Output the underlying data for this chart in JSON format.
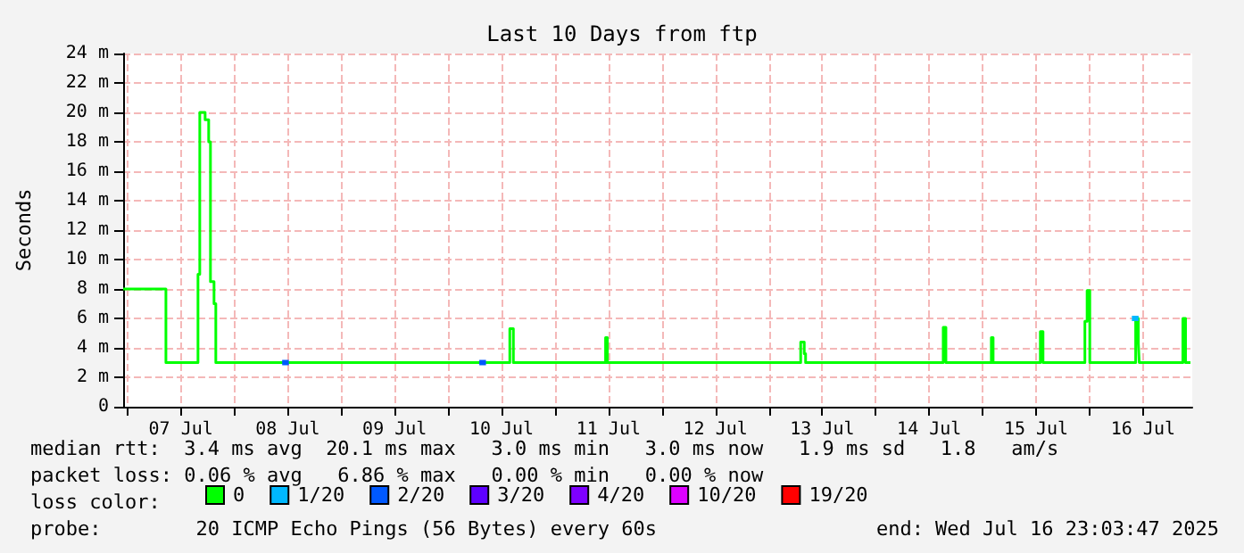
{
  "chart_data": {
    "type": "step",
    "title": "Last 10 Days from ftp",
    "ylabel": "Seconds",
    "xlim": [
      "2025-07-06T23:03",
      "2025-07-16T23:03"
    ],
    "xticks": [
      {
        "value": "2025-07-07T00:00",
        "label": null
      },
      {
        "value": "2025-07-07T12:00",
        "label": "07 Jul"
      },
      {
        "value": "2025-07-08T00:00",
        "label": null
      },
      {
        "value": "2025-07-08T12:00",
        "label": "08 Jul"
      },
      {
        "value": "2025-07-09T00:00",
        "label": null
      },
      {
        "value": "2025-07-09T12:00",
        "label": "09 Jul"
      },
      {
        "value": "2025-07-10T00:00",
        "label": null
      },
      {
        "value": "2025-07-10T12:00",
        "label": "10 Jul"
      },
      {
        "value": "2025-07-11T00:00",
        "label": null
      },
      {
        "value": "2025-07-11T12:00",
        "label": "11 Jul"
      },
      {
        "value": "2025-07-12T00:00",
        "label": null
      },
      {
        "value": "2025-07-12T12:00",
        "label": "12 Jul"
      },
      {
        "value": "2025-07-13T00:00",
        "label": null
      },
      {
        "value": "2025-07-13T12:00",
        "label": "13 Jul"
      },
      {
        "value": "2025-07-14T00:00",
        "label": null
      },
      {
        "value": "2025-07-14T12:00",
        "label": "14 Jul"
      },
      {
        "value": "2025-07-15T00:00",
        "label": null
      },
      {
        "value": "2025-07-15T12:00",
        "label": "15 Jul"
      },
      {
        "value": "2025-07-16T00:00",
        "label": null
      },
      {
        "value": "2025-07-16T12:00",
        "label": "16 Jul"
      }
    ],
    "ylim": [
      0,
      24
    ],
    "yticks": [
      0,
      {
        "value": 2,
        "label": "2 m"
      },
      {
        "value": 4,
        "label": "4 m"
      },
      {
        "value": 6,
        "label": "6 m"
      },
      {
        "value": 8,
        "label": "8 m"
      },
      {
        "value": 10,
        "label": "10 m"
      },
      {
        "value": 12,
        "label": "12 m"
      },
      {
        "value": 14,
        "label": "14 m"
      },
      {
        "value": 16,
        "label": "16 m"
      },
      {
        "value": 18,
        "label": "18 m"
      },
      {
        "value": 20,
        "label": "20 m"
      },
      {
        "value": 22,
        "label": "22 m"
      },
      {
        "value": 24,
        "label": "24 m"
      }
    ],
    "grid": true,
    "legend": "bottom left",
    "legend_title": "loss color:",
    "marker": "none",
    "series": [
      {
        "name": "0",
        "color": "#00ff00",
        "x": [
          "2025-07-06T23:03",
          "2025-07-07T08:15",
          "2025-07-07T08:39",
          "2025-07-07T15:51",
          "2025-07-07T16:15",
          "2025-07-07T17:27",
          "2025-07-07T18:15",
          "2025-07-07T18:39",
          "2025-07-07T19:27",
          "2025-07-07T19:51",
          "2025-07-10T13:51",
          "2025-07-10T14:39",
          "2025-07-11T11:21",
          "2025-07-11T11:45",
          "2025-07-13T07:09",
          "2025-07-13T07:57",
          "2025-07-13T08:15",
          "2025-07-14T15:09",
          "2025-07-14T15:45",
          "2025-07-15T01:57",
          "2025-07-15T02:21",
          "2025-07-15T12:57",
          "2025-07-15T13:33",
          "2025-07-15T22:57",
          "2025-07-15T23:27",
          "2025-07-16T00:03",
          "2025-07-16T10:21",
          "2025-07-16T10:57",
          "2025-07-16T11:09",
          "2025-07-16T20:57",
          "2025-07-16T21:33",
          "2025-07-16T22:39"
        ],
        "values": [
          8,
          8,
          3,
          9,
          20,
          19.5,
          18,
          8.5,
          7,
          3,
          5.3,
          3,
          4.7,
          3,
          4.4,
          3.6,
          3,
          5.4,
          3,
          4.7,
          3,
          5.1,
          3,
          5.8,
          7.9,
          3,
          6,
          4.3,
          3,
          6,
          3,
          3
        ]
      },
      {
        "name": "1/20",
        "color": "#00b8ff",
        "x": [
          "2025-07-16T09:30",
          "2025-07-16T11:00"
        ],
        "values": [
          6,
          6
        ]
      },
      {
        "name": "2/20",
        "color": "#0059ff",
        "x": [
          "2025-07-08T10:45",
          "2025-07-08T12:15",
          "2025-07-08T12:16",
          "2025-07-10T07:00",
          "2025-07-10T08:30"
        ],
        "values": [
          3,
          3,
          null,
          3,
          3
        ]
      },
      {
        "name": "3/20",
        "color": "#5e00ff"
      },
      {
        "name": "4/20",
        "color": "#7e00ff"
      },
      {
        "name": "10/20",
        "color": "#dd00ff"
      },
      {
        "name": "19/20",
        "color": "#ff0000"
      }
    ],
    "annotations": [
      "median rtt:  3.4 ms avg  20.1 ms max   3.0 ms min   3.0 ms now   1.9 ms sd   1.8   am/s",
      "packet loss: 0.06 % avg   6.86 % max   0.00 % min   0.00 % now",
      "probe:        20 ICMP Echo Pings (56 Bytes) every 60s",
      "end: Wed Jul 16 23:03:47 2025"
    ]
  }
}
